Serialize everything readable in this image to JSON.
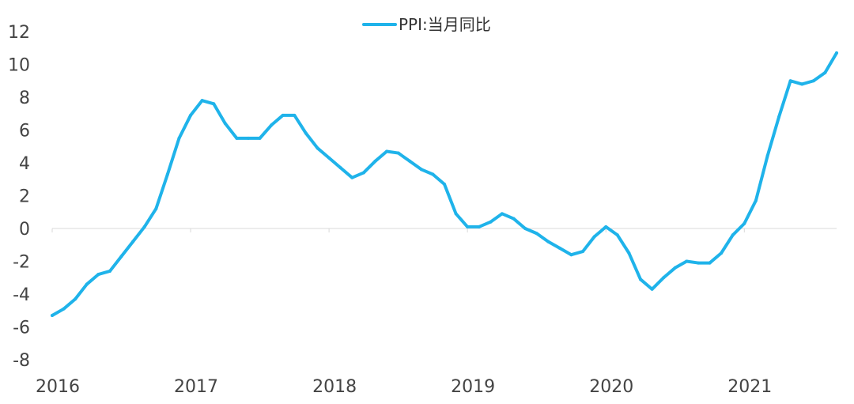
{
  "chart_data": {
    "type": "line",
    "title": "",
    "xlabel": "",
    "ylabel": "",
    "legend": {
      "position": "top-center",
      "entries": [
        "PPI:当月同比"
      ]
    },
    "grid": false,
    "ylim": [
      -8,
      12
    ],
    "yticks": [
      -8,
      -6,
      -4,
      -2,
      0,
      2,
      4,
      6,
      8,
      10,
      12
    ],
    "xlim": [
      "2016-01",
      "2021-09"
    ],
    "xticks": [
      "2016",
      "2017",
      "2018",
      "2019",
      "2020",
      "2021"
    ],
    "series": [
      {
        "name": "PPI:当月同比",
        "color": "#1fb3ea",
        "x": [
          "2016-01",
          "2016-02",
          "2016-03",
          "2016-04",
          "2016-05",
          "2016-06",
          "2016-07",
          "2016-08",
          "2016-09",
          "2016-10",
          "2016-11",
          "2016-12",
          "2017-01",
          "2017-02",
          "2017-03",
          "2017-04",
          "2017-05",
          "2017-06",
          "2017-07",
          "2017-08",
          "2017-09",
          "2017-10",
          "2017-11",
          "2017-12",
          "2018-01",
          "2018-02",
          "2018-03",
          "2018-04",
          "2018-05",
          "2018-06",
          "2018-07",
          "2018-08",
          "2018-09",
          "2018-10",
          "2018-11",
          "2018-12",
          "2019-01",
          "2019-02",
          "2019-03",
          "2019-04",
          "2019-05",
          "2019-06",
          "2019-07",
          "2019-08",
          "2019-09",
          "2019-10",
          "2019-11",
          "2019-12",
          "2020-01",
          "2020-02",
          "2020-03",
          "2020-04",
          "2020-05",
          "2020-06",
          "2020-07",
          "2020-08",
          "2020-09",
          "2020-10",
          "2020-11",
          "2020-12",
          "2021-01",
          "2021-02",
          "2021-03",
          "2021-04",
          "2021-05",
          "2021-06",
          "2021-07",
          "2021-08",
          "2021-09"
        ],
        "values": [
          -5.3,
          -4.9,
          -4.3,
          -3.4,
          -2.8,
          -2.6,
          -1.7,
          -0.8,
          0.1,
          1.2,
          3.3,
          5.5,
          6.9,
          7.8,
          7.6,
          6.4,
          5.5,
          5.5,
          5.5,
          6.3,
          6.9,
          6.9,
          5.8,
          4.9,
          4.3,
          3.7,
          3.1,
          3.4,
          4.1,
          4.7,
          4.6,
          4.1,
          3.6,
          3.3,
          2.7,
          0.9,
          0.1,
          0.1,
          0.4,
          0.9,
          0.6,
          0.0,
          -0.3,
          -0.8,
          -1.2,
          -1.6,
          -1.4,
          -0.5,
          0.1,
          -0.4,
          -1.5,
          -3.1,
          -3.7,
          -3.0,
          -2.4,
          -2.0,
          -2.1,
          -2.1,
          -1.5,
          -0.4,
          0.3,
          1.7,
          4.4,
          6.8,
          9.0,
          8.8,
          9.0,
          9.5,
          10.7
        ]
      }
    ]
  }
}
